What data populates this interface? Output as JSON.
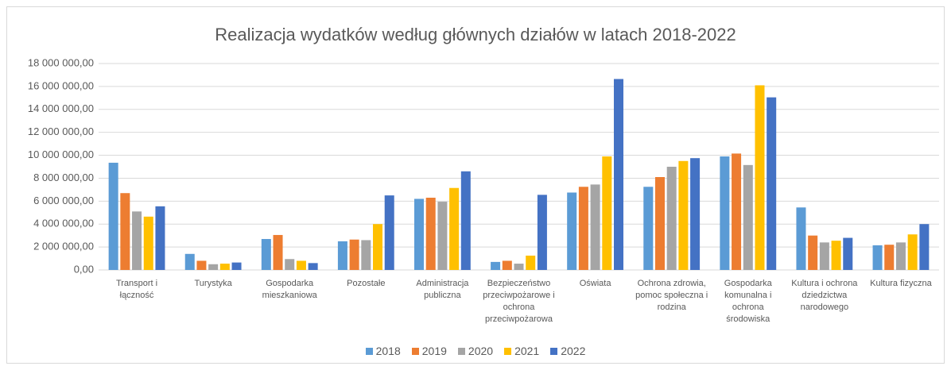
{
  "chart_data": {
    "type": "bar",
    "title": "Realizacja wydatków według głównych działów w latach 2018-2022",
    "categories": [
      "Transport i łączność",
      "Turystyka",
      "Gospodarka mieszkaniowa",
      "Pozostałe",
      "Administracja publiczna",
      "Bezpieczeństwo przeciwpożarowe i ochrona przeciwpożarowa",
      "Oświata",
      "Ochrona zdrowia, pomoc społeczna i rodzina",
      "Gospodarka komunalna i ochrona środowiska",
      "Kultura i ochrona dziedzictwa narodowego",
      "Kultura fizyczna"
    ],
    "series": [
      {
        "name": "2018",
        "color": "#5b9bd5",
        "values": [
          9350000,
          1400000,
          2700000,
          2500000,
          6200000,
          700000,
          6750000,
          7250000,
          9900000,
          5450000,
          2150000
        ]
      },
      {
        "name": "2019",
        "color": "#ed7d31",
        "values": [
          6700000,
          800000,
          3050000,
          2650000,
          6300000,
          800000,
          7250000,
          8100000,
          10150000,
          3000000,
          2200000
        ]
      },
      {
        "name": "2020",
        "color": "#a5a5a5",
        "values": [
          5100000,
          500000,
          950000,
          2600000,
          5950000,
          550000,
          7450000,
          9000000,
          9150000,
          2400000,
          2400000
        ]
      },
      {
        "name": "2021",
        "color": "#ffc000",
        "values": [
          4650000,
          550000,
          800000,
          4000000,
          7150000,
          1250000,
          9900000,
          9500000,
          16100000,
          2550000,
          3100000
        ]
      },
      {
        "name": "2022",
        "color": "#4472c4",
        "values": [
          5550000,
          650000,
          600000,
          6500000,
          8600000,
          6550000,
          16650000,
          9750000,
          15050000,
          2800000,
          4000000
        ]
      }
    ],
    "ylim": [
      0,
      18000000
    ],
    "yticks": [
      {
        "value": 0,
        "label": "0,00"
      },
      {
        "value": 2000000,
        "label": "2 000 000,00"
      },
      {
        "value": 4000000,
        "label": "4 000 000,00"
      },
      {
        "value": 6000000,
        "label": "6 000 000,00"
      },
      {
        "value": 8000000,
        "label": "8 000 000,00"
      },
      {
        "value": 10000000,
        "label": "10 000 000,00"
      },
      {
        "value": 12000000,
        "label": "12 000 000,00"
      },
      {
        "value": 14000000,
        "label": "14 000 000,00"
      },
      {
        "value": 16000000,
        "label": "16 000 000,00"
      },
      {
        "value": 18000000,
        "label": "18 000 000,00"
      }
    ],
    "grid": true,
    "legend": "bottom"
  }
}
